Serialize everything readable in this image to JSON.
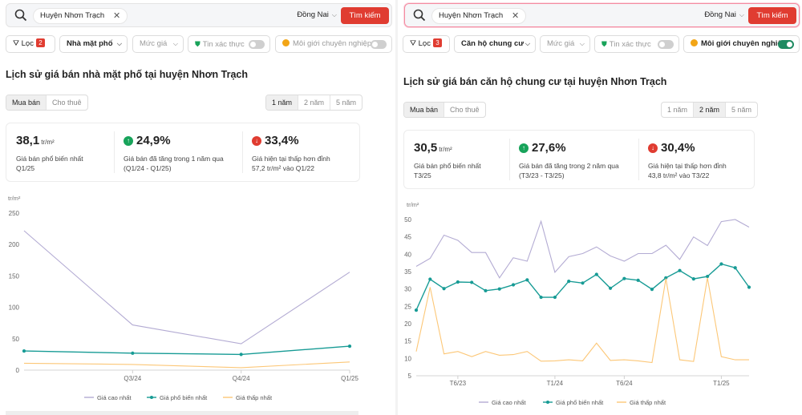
{
  "colors": {
    "accent": "#e03c31",
    "high": "#b3abd3",
    "common": "#179b95",
    "low": "#fcc777"
  },
  "panels": [
    {
      "search": {
        "location_chip": "Huyện Nhơn Trạch",
        "province": "Đồng Nai",
        "button": "Tìm kiếm"
      },
      "filters": {
        "filter_label": "Lọc",
        "filter_count": "2",
        "property_type": "Nhà mặt phố",
        "price": "Mức giá",
        "verified": "Tin xác thực",
        "verified_on": false,
        "broker": "Môi giới chuyên nghiệp",
        "broker_on": false
      },
      "title": "Lịch sử giá bán nhà mặt phố tại huyện Nhơn Trạch",
      "tabs": [
        "Mua bán",
        "Cho thuê"
      ],
      "periods": [
        "1 năm",
        "2 năm",
        "5 năm"
      ],
      "active_period": 0,
      "stats": [
        {
          "value": "38,1",
          "unit": "tr/m²",
          "line1": "Giá bán phổ biến nhất",
          "line2": "Q1/25",
          "arrow": ""
        },
        {
          "value": "24,9%",
          "unit": "",
          "line1": "Giá bán đã tăng trong 1 năm qua",
          "line2": "(Q1/24 - Q1/25)",
          "arrow": "up"
        },
        {
          "value": "33,4%",
          "unit": "",
          "line1": "Giá hiện tại thấp hơn đỉnh",
          "line2": "57,2 tr/m² vào Q1/22",
          "arrow": "down"
        }
      ],
      "chart_data": {
        "type": "line",
        "ylabel": "tr/m²",
        "ylim": [
          0,
          250
        ],
        "yticks": [
          0,
          50,
          100,
          150,
          200,
          250
        ],
        "x": [
          "Q2/24",
          "Q3/24",
          "Q4/24",
          "Q1/25"
        ],
        "xticks": [
          "Q3/24",
          "Q4/24",
          "Q1/25"
        ],
        "grid": false,
        "legend": "bottom",
        "markers_on_common": true,
        "series": [
          {
            "name": "Giá cao nhất",
            "key": "high",
            "values": [
              222,
              72,
              42,
              156
            ]
          },
          {
            "name": "Giá phổ biến nhất",
            "key": "common",
            "values": [
              30.5,
              27,
              25,
              38.1
            ]
          },
          {
            "name": "Giá thấp nhất",
            "key": "low",
            "values": [
              11,
              9,
              4,
              13
            ]
          }
        ]
      }
    },
    {
      "search": {
        "location_chip": "Huyện Nhơn Trạch",
        "province": "Đồng Nai",
        "button": "Tìm kiếm"
      },
      "filters": {
        "filter_label": "Lọc",
        "filter_count": "3",
        "property_type": "Căn hộ chung cư",
        "price": "Mức giá",
        "verified": "Tin xác thực",
        "verified_on": false,
        "broker": "Môi giới chuyên nghiệp",
        "broker_on": true
      },
      "title": "Lịch sử giá bán căn hộ chung cư tại huyện Nhơn Trạch",
      "tabs": [
        "Mua bán",
        "Cho thuê"
      ],
      "periods": [
        "1 năm",
        "2 năm",
        "5 năm"
      ],
      "active_period": 1,
      "stats": [
        {
          "value": "30,5",
          "unit": "tr/m²",
          "line1": "Giá bán phổ biến nhất",
          "line2": "T3/25",
          "arrow": ""
        },
        {
          "value": "27,6%",
          "unit": "",
          "line1": "Giá bán đã tăng trong 2 năm qua",
          "line2": "(T3/23 - T3/25)",
          "arrow": "up"
        },
        {
          "value": "30,4%",
          "unit": "",
          "line1": "Giá hiện tại thấp hơn đỉnh",
          "line2": "43,8 tr/m² vào T3/22",
          "arrow": "down"
        }
      ],
      "chart_data": {
        "type": "line",
        "ylabel": "tr/m²",
        "ylim": [
          5,
          50
        ],
        "yticks": [
          5,
          10,
          15,
          20,
          25,
          30,
          35,
          40,
          45,
          50
        ],
        "x": [
          "T3/23",
          "T4/23",
          "T5/23",
          "T6/23",
          "T7/23",
          "T8/23",
          "T9/23",
          "T10/23",
          "T11/23",
          "T12/23",
          "T1/24",
          "T2/24",
          "T3/24",
          "T4/24",
          "T5/24",
          "T6/24",
          "T7/24",
          "T8/24",
          "T9/24",
          "T10/24",
          "T11/24",
          "T12/24",
          "T1/25",
          "T2/25",
          "T3/25"
        ],
        "xticks": [
          "T6/23",
          "T1/24",
          "T6/24",
          "T1/25"
        ],
        "grid": false,
        "legend": "bottom",
        "markers_on_common": true,
        "series": [
          {
            "name": "Giá cao nhất",
            "key": "high",
            "values": [
              36.5,
              38.8,
              45.5,
              44,
              40.5,
              40.5,
              33.2,
              39,
              38,
              49.5,
              34.8,
              39.3,
              40.2,
              42.1,
              39.5,
              38,
              40.2,
              40.2,
              42.6,
              38.5,
              45,
              42.5,
              49.4,
              50,
              47.8
            ]
          },
          {
            "name": "Giá phổ biến nhất",
            "key": "common",
            "values": [
              23.9,
              32.8,
              30.1,
              32,
              31.9,
              29.5,
              30,
              31.2,
              32.6,
              27.6,
              27.6,
              32.2,
              31.7,
              34.2,
              30.2,
              33,
              32.5,
              29.9,
              33.2,
              35.3,
              32.9,
              33.6,
              37.2,
              36.1,
              30.5
            ]
          },
          {
            "name": "Giá thấp nhất",
            "key": "low",
            "values": [
              12,
              30.5,
              11.3,
              12,
              10.5,
              12,
              10.9,
              11.1,
              12,
              9.2,
              9.3,
              9.6,
              9.3,
              14.4,
              9.4,
              9.6,
              9.3,
              8.8,
              33,
              9.6,
              9.1,
              33.2,
              10.5,
              9.6,
              9.6
            ]
          }
        ]
      }
    }
  ]
}
